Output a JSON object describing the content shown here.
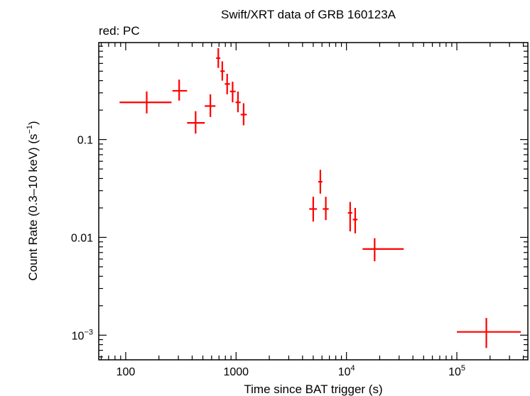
{
  "chart_data": {
    "type": "scatter",
    "title": "Swift/XRT data of GRB 160123A",
    "subtitle": "red: PC",
    "xlabel": "Time since BAT trigger (s)",
    "ylabel_main": "Count Rate (0.3–10 keV) (s",
    "ylabel_sup": "−1",
    "ylabel_end": ")",
    "xscale": "log",
    "yscale": "log",
    "xlim": [
      57,
      440000
    ],
    "ylim": [
      0.00056,
      0.98
    ],
    "grid": false,
    "series_color": "#ff0000",
    "x_ticks": [
      {
        "value": 100,
        "label": "100",
        "sup": ""
      },
      {
        "value": 1000,
        "label": "1000",
        "sup": ""
      },
      {
        "value": 10000,
        "label": "10",
        "sup": "4"
      },
      {
        "value": 100000,
        "label": "10",
        "sup": "5"
      }
    ],
    "y_ticks": [
      {
        "value": 0.1,
        "label": "0.1",
        "sup": ""
      },
      {
        "value": 0.01,
        "label": "0.01",
        "sup": ""
      },
      {
        "value": 0.001,
        "label": "10",
        "sup": "−3"
      }
    ],
    "series": [
      {
        "points": [
          {
            "x": 155,
            "xlo": 88,
            "xhi": 260,
            "y": 0.24,
            "ylo": 0.185,
            "yhi": 0.31
          },
          {
            "x": 305,
            "xlo": 265,
            "xhi": 360,
            "y": 0.315,
            "ylo": 0.25,
            "yhi": 0.41
          },
          {
            "x": 430,
            "xlo": 360,
            "xhi": 520,
            "y": 0.148,
            "ylo": 0.115,
            "yhi": 0.195
          },
          {
            "x": 585,
            "xlo": 520,
            "xhi": 650,
            "y": 0.22,
            "ylo": 0.17,
            "yhi": 0.29
          },
          {
            "x": 690,
            "xlo": 660,
            "xhi": 720,
            "y": 0.68,
            "ylo": 0.54,
            "yhi": 0.86
          },
          {
            "x": 750,
            "xlo": 720,
            "xhi": 790,
            "y": 0.5,
            "ylo": 0.4,
            "yhi": 0.63
          },
          {
            "x": 830,
            "xlo": 790,
            "xhi": 880,
            "y": 0.37,
            "ylo": 0.29,
            "yhi": 0.47
          },
          {
            "x": 930,
            "xlo": 880,
            "xhi": 990,
            "y": 0.31,
            "ylo": 0.24,
            "yhi": 0.39
          },
          {
            "x": 1040,
            "xlo": 990,
            "xhi": 1100,
            "y": 0.24,
            "ylo": 0.19,
            "yhi": 0.31
          },
          {
            "x": 1170,
            "xlo": 1100,
            "xhi": 1250,
            "y": 0.18,
            "ylo": 0.14,
            "yhi": 0.235
          },
          {
            "x": 5000,
            "xlo": 4600,
            "xhi": 5400,
            "y": 0.0195,
            "ylo": 0.0145,
            "yhi": 0.026
          },
          {
            "x": 5800,
            "xlo": 5550,
            "xhi": 6050,
            "y": 0.037,
            "ylo": 0.028,
            "yhi": 0.049
          },
          {
            "x": 6500,
            "xlo": 6100,
            "xhi": 6900,
            "y": 0.0195,
            "ylo": 0.015,
            "yhi": 0.026
          },
          {
            "x": 10800,
            "xlo": 10300,
            "xhi": 11300,
            "y": 0.0178,
            "ylo": 0.0115,
            "yhi": 0.023
          },
          {
            "x": 12000,
            "xlo": 11400,
            "xhi": 12600,
            "y": 0.0152,
            "ylo": 0.011,
            "yhi": 0.02
          },
          {
            "x": 18000,
            "xlo": 14000,
            "xhi": 33000,
            "y": 0.0076,
            "ylo": 0.0057,
            "yhi": 0.0098
          },
          {
            "x": 185000,
            "xlo": 100000,
            "xhi": 380000,
            "y": 0.00108,
            "ylo": 0.00074,
            "yhi": 0.0015
          }
        ]
      }
    ]
  }
}
